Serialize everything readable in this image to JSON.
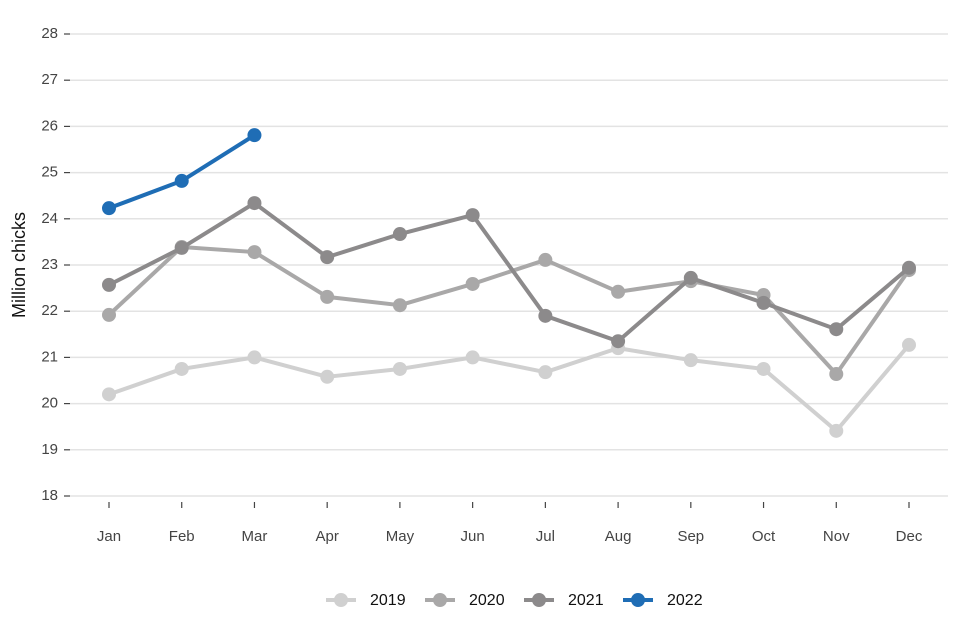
{
  "chart_data": {
    "type": "line",
    "y_label": "Million chicks",
    "categories": [
      "Jan",
      "Feb",
      "Mar",
      "Apr",
      "May",
      "Jun",
      "Jul",
      "Aug",
      "Sep",
      "Oct",
      "Nov",
      "Dec"
    ],
    "series": [
      {
        "name": "2019",
        "color": "#d0d0d0",
        "values": [
          20.2,
          20.75,
          21.0,
          20.58,
          20.75,
          21.0,
          20.68,
          21.2,
          20.94,
          20.75,
          19.41,
          21.27
        ]
      },
      {
        "name": "2020",
        "color": "#a9a8a8",
        "values": [
          21.92,
          23.39,
          23.28,
          22.31,
          22.13,
          22.59,
          23.11,
          22.42,
          22.65,
          22.35,
          20.64,
          22.89
        ]
      },
      {
        "name": "2021",
        "color": "#8c8a8b",
        "values": [
          22.57,
          23.37,
          24.34,
          23.17,
          23.67,
          24.08,
          21.9,
          21.35,
          22.72,
          22.18,
          21.61,
          22.94
        ]
      },
      {
        "name": "2022",
        "color": "#1f6db5",
        "values": [
          24.23,
          24.82,
          25.81,
          null,
          null,
          null,
          null,
          null,
          null,
          null,
          null,
          null
        ]
      }
    ],
    "ylim": [
      18,
      28
    ],
    "yticks": [
      18,
      19,
      20,
      21,
      22,
      23,
      24,
      25,
      26,
      27,
      28
    ],
    "grid": true,
    "legend": "bottom"
  }
}
